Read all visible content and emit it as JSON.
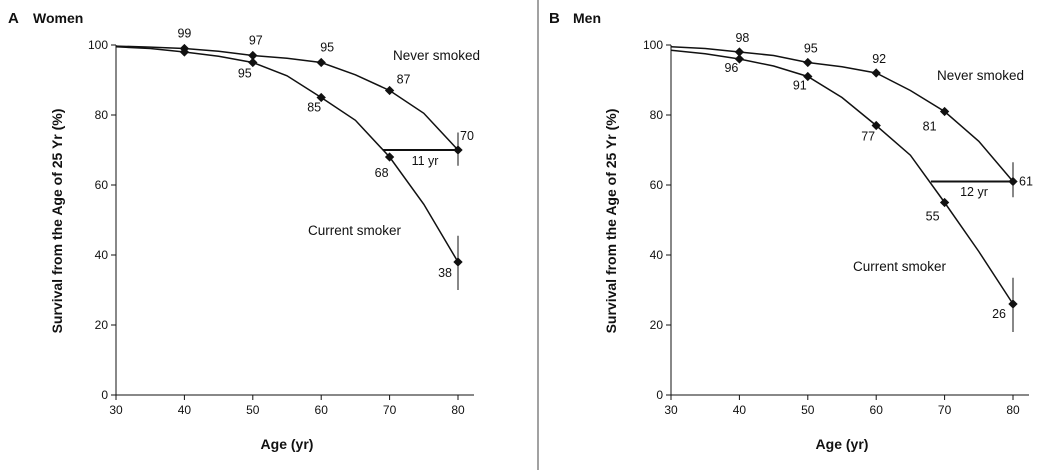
{
  "chart_data": [
    {
      "type": "line",
      "panel_letter": "A",
      "title": "Women",
      "xlabel": "Age (yr)",
      "ylabel": "Survival from the Age of 25 Yr (%)",
      "xlim": [
        30,
        80
      ],
      "ylim": [
        0,
        100
      ],
      "xticks": [
        "30",
        "40",
        "50",
        "60",
        "70",
        "80"
      ],
      "yticks": [
        "0",
        "20",
        "40",
        "60",
        "80",
        "100"
      ],
      "grid": false,
      "x": [
        30,
        35,
        40,
        45,
        50,
        55,
        60,
        65,
        70,
        75,
        80
      ],
      "series": [
        {
          "name": "Never smoked",
          "values": [
            99.7,
            99.4,
            99,
            98.2,
            97,
            96.2,
            95,
            91.5,
            87,
            80.5,
            70
          ],
          "markers": [
            {
              "x": 40,
              "y": 99,
              "label": "99"
            },
            {
              "x": 50,
              "y": 97,
              "label": "97"
            },
            {
              "x": 60,
              "y": 95,
              "label": "95"
            },
            {
              "x": 70,
              "y": 87,
              "label": "87"
            },
            {
              "x": 80,
              "y": 70,
              "label": "70"
            }
          ]
        },
        {
          "name": "Current smoker",
          "values": [
            99.5,
            99,
            98,
            96.8,
            95,
            91.2,
            85,
            78.5,
            68,
            54.5,
            38
          ],
          "markers": [
            {
              "x": 40,
              "y": 98,
              "label": ""
            },
            {
              "x": 50,
              "y": 95,
              "label": "95"
            },
            {
              "x": 60,
              "y": 85,
              "label": "85"
            },
            {
              "x": 70,
              "y": 68,
              "label": "68"
            },
            {
              "x": 80,
              "y": 38,
              "label": "38"
            }
          ]
        }
      ],
      "error_bars": [
        {
          "x": 80,
          "low": 65.5,
          "high": 75
        },
        {
          "x": 80,
          "low": 30,
          "high": 45.5
        }
      ],
      "annotation": {
        "text": "11 yr",
        "x_from": 69,
        "x_to": 80,
        "y": 70
      }
    },
    {
      "type": "line",
      "panel_letter": "B",
      "title": "Men",
      "xlabel": "Age (yr)",
      "ylabel": "Survival from the Age of 25 Yr (%)",
      "xlim": [
        30,
        80
      ],
      "ylim": [
        0,
        100
      ],
      "xticks": [
        "30",
        "40",
        "50",
        "60",
        "70",
        "80"
      ],
      "yticks": [
        "0",
        "20",
        "40",
        "60",
        "80",
        "100"
      ],
      "grid": false,
      "x": [
        30,
        35,
        40,
        45,
        50,
        55,
        60,
        65,
        70,
        75,
        80
      ],
      "series": [
        {
          "name": "Never smoked",
          "values": [
            99.5,
            99,
            98,
            97,
            95,
            93.8,
            92,
            87,
            81,
            72.5,
            61
          ],
          "markers": [
            {
              "x": 40,
              "y": 98,
              "label": "98"
            },
            {
              "x": 50,
              "y": 95,
              "label": "95"
            },
            {
              "x": 60,
              "y": 92,
              "label": "92"
            },
            {
              "x": 70,
              "y": 81,
              "label": "81"
            },
            {
              "x": 80,
              "y": 61,
              "label": "61"
            }
          ]
        },
        {
          "name": "Current smoker",
          "values": [
            98.5,
            97.5,
            96,
            94,
            91,
            85,
            77,
            68.5,
            55,
            41,
            26
          ],
          "markers": [
            {
              "x": 40,
              "y": 96,
              "label": "96"
            },
            {
              "x": 50,
              "y": 91,
              "label": "91"
            },
            {
              "x": 60,
              "y": 77,
              "label": "77"
            },
            {
              "x": 70,
              "y": 55,
              "label": "55"
            },
            {
              "x": 80,
              "y": 26,
              "label": "26"
            }
          ]
        }
      ],
      "error_bars": [
        {
          "x": 80,
          "low": 56.5,
          "high": 66.5
        },
        {
          "x": 80,
          "low": 18,
          "high": 33.5
        }
      ],
      "annotation": {
        "text": "12 yr",
        "x_from": 68,
        "x_to": 80,
        "y": 61
      }
    }
  ]
}
